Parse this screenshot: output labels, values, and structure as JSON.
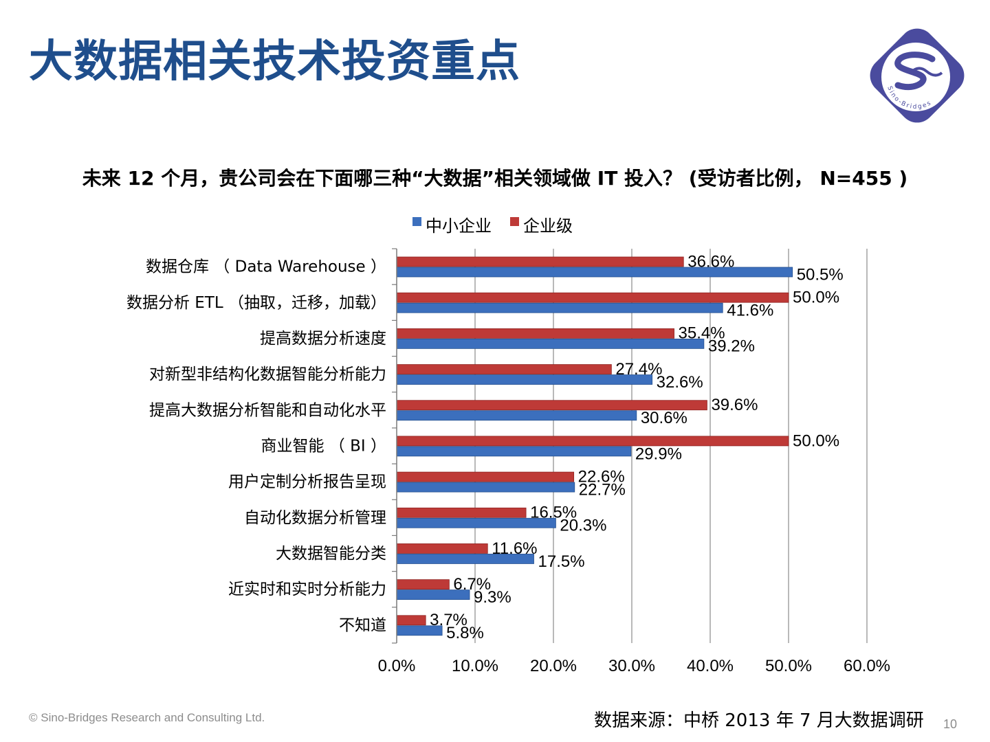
{
  "slide": {
    "title": "大数据相关技术投资重点",
    "footer_copyright": "© Sino-Bridges Research and Consulting Ltd.",
    "source": "数据来源：中桥 2013 年 7 月大数据调研",
    "page_number": "10",
    "logo_text": "Sino-Bridges"
  },
  "colors": {
    "title": "#1f4e8c",
    "logo": "#4a4b9e",
    "smb_bar": "#3c6fbd",
    "enterprise_bar": "#be3a37"
  },
  "chart_data": {
    "type": "bar",
    "orientation": "horizontal",
    "title": "未来 12 个月，贵公司会在下面哪三种“大数据”相关领域做 IT 投入？ (受访者比例， N=455 )",
    "categories": [
      "数据仓库 （ Data Warehouse ）",
      "数据分析 ETL （抽取，迁移，加载）",
      "提高数据分析速度",
      "对新型非结构化数据智能分析能力",
      "提高大数据分析智能和自动化水平",
      "商业智能 （ BI ）",
      "用户定制分析报告呈现",
      "自动化数据分析管理",
      "大数据智能分类",
      "近实时和实时分析能力",
      "不知道"
    ],
    "series": [
      {
        "name": "中小企业",
        "values": [
          50.5,
          41.6,
          39.2,
          32.6,
          30.6,
          29.9,
          22.7,
          20.3,
          17.5,
          9.3,
          5.8
        ],
        "labels": [
          "50.5%",
          "41.6%",
          "39.2%",
          "32.6%",
          "30.6%",
          "29.9%",
          "22.7%",
          "20.3%",
          "17.5%",
          "9.3%",
          "5.8%"
        ]
      },
      {
        "name": "企业级",
        "values": [
          36.6,
          50.0,
          35.4,
          27.4,
          39.6,
          50.0,
          22.6,
          16.5,
          11.6,
          6.7,
          3.7
        ],
        "labels": [
          "36.6%",
          "50.0%",
          "35.4%",
          "27.4%",
          "39.6%",
          "50.0%",
          "22.6%",
          "16.5%",
          "11.6%",
          "6.7%",
          "3.7%"
        ]
      }
    ],
    "xlim": [
      0,
      60
    ],
    "xticks": [
      "0.0%",
      "10.0%",
      "20.0%",
      "30.0%",
      "40.0%",
      "50.0%",
      "60.0%"
    ],
    "xlabel": "",
    "ylabel": "",
    "grid": true,
    "legend_position": "top-center"
  }
}
